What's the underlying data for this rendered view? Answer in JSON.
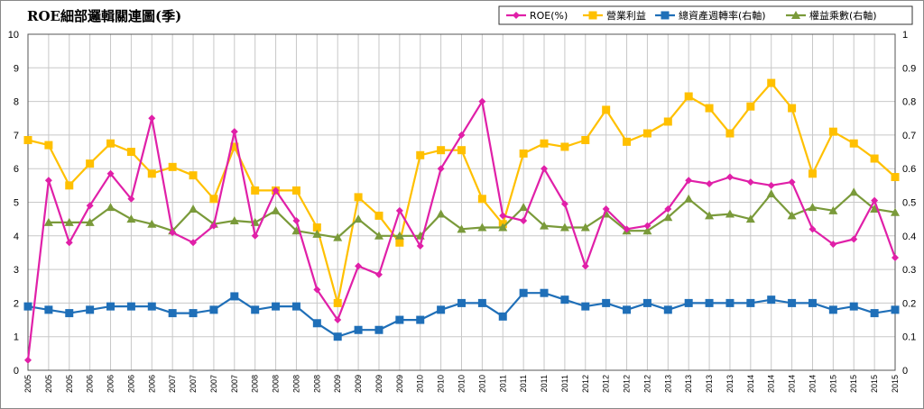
{
  "chart_data": {
    "type": "line",
    "title": "ROE細部邏輯關連圖(季)",
    "x": [
      "2005",
      "2005",
      "2005",
      "2006",
      "2006",
      "2006",
      "2006",
      "2007",
      "2007",
      "2007",
      "2007",
      "2008",
      "2008",
      "2008",
      "2008",
      "2009",
      "2009",
      "2009",
      "2009",
      "2010",
      "2010",
      "2010",
      "2010",
      "2011",
      "2011",
      "2011",
      "2011",
      "2012",
      "2012",
      "2012",
      "2012",
      "2013",
      "2013",
      "2013",
      "2013",
      "2014",
      "2014",
      "2014",
      "2014",
      "2015",
      "2015",
      "2015",
      "2015"
    ],
    "y_left": {
      "min": 0,
      "max": 10,
      "ticks": [
        "0",
        "1",
        "2",
        "3",
        "4",
        "5",
        "6",
        "7",
        "8",
        "9",
        "10"
      ]
    },
    "y_right": {
      "min": 0,
      "max": 1,
      "ticks": [
        "0",
        "0.1",
        "0.2",
        "0.3",
        "0.4",
        "0.5",
        "0.6",
        "0.7",
        "0.8",
        "0.9",
        "1"
      ]
    },
    "grid": true,
    "legend_position": "top-right",
    "series": [
      {
        "name": "ROE(%)",
        "axis": "left",
        "color": "#E020A8",
        "marker": "diamond",
        "values": [
          0.3,
          5.65,
          3.8,
          4.9,
          5.85,
          5.1,
          7.5,
          4.1,
          3.8,
          4.3,
          7.1,
          4.0,
          5.35,
          4.45,
          2.4,
          1.5,
          3.1,
          2.85,
          4.75,
          3.7,
          6.0,
          7.0,
          8.0,
          4.6,
          4.45,
          6.0,
          4.95,
          3.1,
          4.8,
          4.2,
          4.3,
          4.8,
          5.65,
          5.55,
          5.75,
          5.6,
          5.5,
          5.6,
          4.2,
          3.75,
          3.9,
          5.05,
          3.35
        ]
      },
      {
        "name": "營業利益",
        "axis": "left",
        "color": "#FFC000",
        "marker": "square",
        "values": [
          6.85,
          6.7,
          5.5,
          6.15,
          6.75,
          6.5,
          5.85,
          6.05,
          5.8,
          5.1,
          6.65,
          5.35,
          5.35,
          5.35,
          4.25,
          2.0,
          5.15,
          4.6,
          3.8,
          6.4,
          6.55,
          6.55,
          5.1,
          4.35,
          6.45,
          6.75,
          6.65,
          6.85,
          7.75,
          6.8,
          7.05,
          7.4,
          8.15,
          7.8,
          7.05,
          7.85,
          8.55,
          7.8,
          5.85,
          7.1,
          6.75,
          6.3,
          5.75
        ]
      },
      {
        "name": "總資產週轉率(右軸)",
        "axis": "right",
        "color": "#1F6FB8",
        "marker": "square",
        "values": [
          0.19,
          0.18,
          0.17,
          0.18,
          0.19,
          0.19,
          0.19,
          0.17,
          0.17,
          0.18,
          0.22,
          0.18,
          0.19,
          0.19,
          0.14,
          0.1,
          0.12,
          0.12,
          0.15,
          0.15,
          0.18,
          0.2,
          0.2,
          0.16,
          0.23,
          0.23,
          0.21,
          0.19,
          0.2,
          0.18,
          0.2,
          0.18,
          0.2,
          0.2,
          0.2,
          0.2,
          0.21,
          0.2,
          0.2,
          0.18,
          0.19,
          0.17,
          0.18
        ]
      },
      {
        "name": "權益乘數(右軸)",
        "axis": "right",
        "color": "#7A9A3A",
        "marker": "triangle",
        "values": [
          null,
          0.44,
          0.44,
          0.44,
          0.485,
          0.45,
          0.435,
          0.415,
          0.48,
          0.435,
          0.445,
          0.44,
          0.475,
          0.415,
          0.405,
          0.395,
          0.45,
          0.4,
          0.4,
          0.4,
          0.465,
          0.42,
          0.425,
          0.425,
          0.485,
          0.43,
          0.425,
          0.425,
          0.465,
          0.415,
          0.415,
          0.455,
          0.51,
          0.46,
          0.465,
          0.45,
          0.525,
          0.46,
          0.485,
          0.475,
          0.53,
          0.48,
          0.47
        ]
      }
    ]
  }
}
